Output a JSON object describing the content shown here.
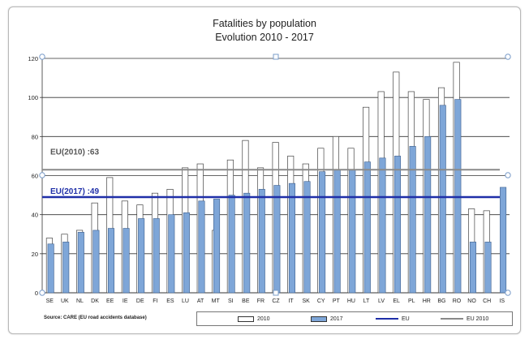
{
  "chart_data": {
    "type": "bar",
    "title": "Fatalities by population",
    "subtitle": "Evolution 2010 - 2017",
    "categories": [
      "SE",
      "UK",
      "NL",
      "DK",
      "EE",
      "IE",
      "DE",
      "FI",
      "ES",
      "LU",
      "AT",
      "MT",
      "SI",
      "BE",
      "FR",
      "CZ",
      "IT",
      "SK",
      "CY",
      "PT",
      "HU",
      "LT",
      "LV",
      "EL",
      "PL",
      "HR",
      "BG",
      "RO",
      "NO",
      "CH",
      "IS"
    ],
    "series": [
      {
        "name": "2010",
        "values": [
          28,
          30,
          32,
          46,
          59,
          47,
          45,
          51,
          53,
          64,
          66,
          32,
          68,
          78,
          64,
          77,
          70,
          66,
          74,
          80,
          74,
          95,
          103,
          113,
          103,
          99,
          105,
          118,
          43,
          42,
          null
        ],
        "color": "#ffffff"
      },
      {
        "name": "2017",
        "values": [
          25,
          26,
          31,
          32,
          33,
          33,
          38,
          38,
          40,
          41,
          47,
          48,
          50,
          51,
          53,
          55,
          56,
          57,
          62,
          63,
          63,
          67,
          69,
          70,
          75,
          80,
          96,
          99,
          26,
          26,
          54
        ],
        "color": "#7ea6d8"
      }
    ],
    "reference_lines": [
      {
        "name": "EU",
        "label": "EU(2017) :49",
        "value": 49,
        "color": "#1f2fa8"
      },
      {
        "name": "EU 2010",
        "label": "EU(2010) :63",
        "value": 63,
        "color": "#8a8a8a"
      }
    ],
    "yticks": [
      "0",
      "20",
      "40",
      "60",
      "80",
      "100",
      "120"
    ],
    "ylim": [
      0,
      120
    ],
    "grid": true,
    "legend": "bottom-right",
    "source": "Source: CARE (EU road accidents database)"
  }
}
